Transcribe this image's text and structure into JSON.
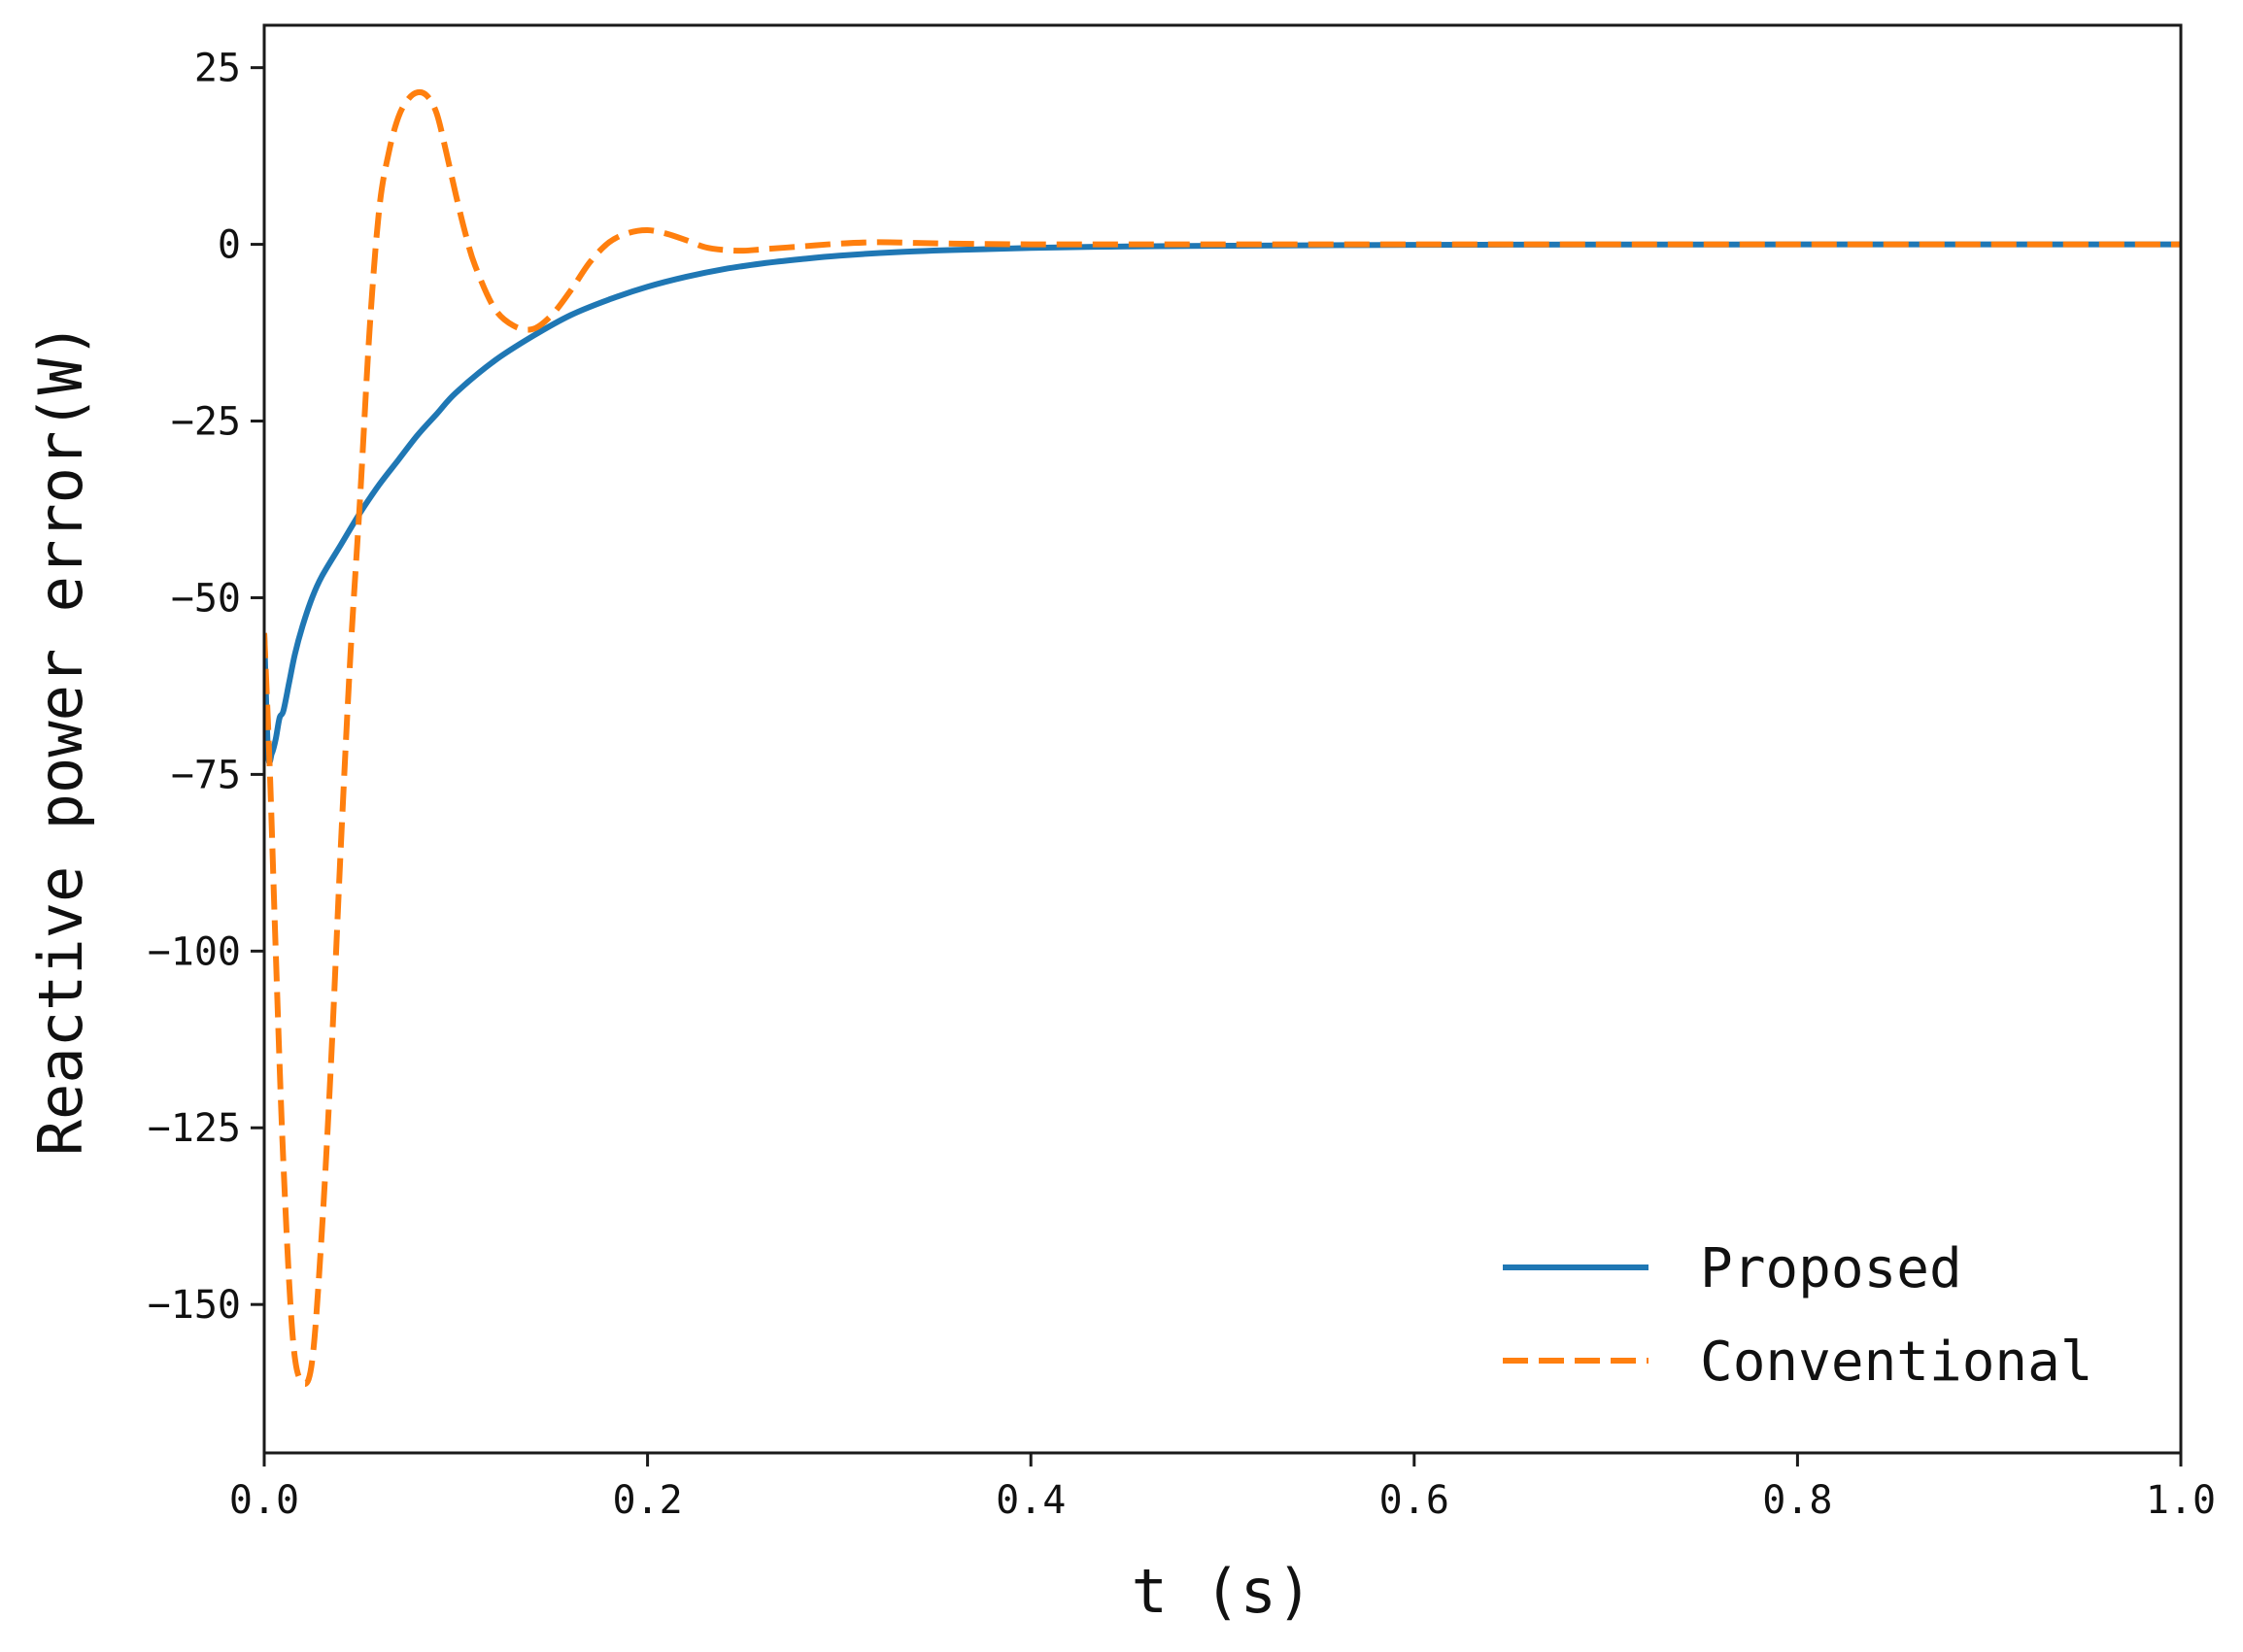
{
  "chart_data": {
    "type": "line",
    "title": "",
    "xlabel": "t (s)",
    "ylabel": "Reactive power error(W)",
    "xlim": [
      0.0,
      1.0
    ],
    "ylim": [
      -171,
      31
    ],
    "grid": false,
    "legend_position": "bottom-right",
    "x_ticks": [
      {
        "value": 0.0,
        "label": "0.0"
      },
      {
        "value": 0.2,
        "label": "0.2"
      },
      {
        "value": 0.4,
        "label": "0.4"
      },
      {
        "value": 0.6,
        "label": "0.6"
      },
      {
        "value": 0.8,
        "label": "0.8"
      },
      {
        "value": 1.0,
        "label": "1.0"
      }
    ],
    "y_ticks": [
      {
        "value": 25,
        "label": "25"
      },
      {
        "value": 0,
        "label": "0"
      },
      {
        "value": -25,
        "label": "−25"
      },
      {
        "value": -50,
        "label": "−50"
      },
      {
        "value": -75,
        "label": "−75"
      },
      {
        "value": -100,
        "label": "−100"
      },
      {
        "value": -125,
        "label": "−125"
      },
      {
        "value": -150,
        "label": "−150"
      }
    ],
    "series": [
      {
        "name": "Proposed",
        "color": "#1f77b4",
        "style": "solid",
        "x": [
          0.0,
          0.002,
          0.004,
          0.006,
          0.008,
          0.01,
          0.013,
          0.016,
          0.02,
          0.025,
          0.03,
          0.04,
          0.05,
          0.06,
          0.07,
          0.08,
          0.09,
          0.1,
          0.12,
          0.14,
          0.16,
          0.18,
          0.2,
          0.22,
          0.24,
          0.26,
          0.28,
          0.3,
          0.33,
          0.36,
          0.4,
          0.45,
          0.5,
          0.6,
          0.7,
          0.8,
          0.9,
          1.0
        ],
        "y": [
          -55,
          -72,
          -72,
          -70,
          -67,
          -66,
          -62,
          -58,
          -54,
          -50,
          -47,
          -42.5,
          -38,
          -34,
          -30.5,
          -27,
          -24,
          -21,
          -16.5,
          -13,
          -10,
          -7.8,
          -6,
          -4.6,
          -3.5,
          -2.7,
          -2.1,
          -1.6,
          -1.1,
          -0.8,
          -0.5,
          -0.3,
          -0.2,
          -0.07,
          -0.03,
          -0.01,
          0,
          0
        ]
      },
      {
        "name": "Conventional",
        "color": "#ff7f0e",
        "style": "dashed",
        "x": [
          0.0,
          0.003,
          0.006,
          0.01,
          0.015,
          0.02,
          0.025,
          0.03,
          0.035,
          0.04,
          0.045,
          0.05,
          0.055,
          0.06,
          0.065,
          0.07,
          0.075,
          0.08,
          0.085,
          0.09,
          0.095,
          0.1,
          0.105,
          0.11,
          0.12,
          0.13,
          0.14,
          0.15,
          0.16,
          0.17,
          0.18,
          0.19,
          0.2,
          0.21,
          0.22,
          0.23,
          0.24,
          0.25,
          0.26,
          0.28,
          0.3,
          0.32,
          0.34,
          0.36,
          0.4,
          0.45,
          0.5,
          0.6,
          0.7,
          0.8,
          0.9,
          1.0
        ],
        "y": [
          -55,
          -75,
          -100,
          -130,
          -155,
          -161,
          -158,
          -140,
          -115,
          -85,
          -58,
          -36,
          -12,
          5,
          13,
          18,
          20.5,
          21.5,
          21,
          18.5,
          13,
          7,
          1.5,
          -3,
          -9,
          -11.5,
          -12,
          -10,
          -6.5,
          -2.5,
          0.3,
          1.6,
          2,
          1.5,
          0.6,
          -0.4,
          -0.8,
          -0.9,
          -0.7,
          -0.3,
          0.1,
          0.3,
          0.2,
          0.1,
          0,
          0,
          0,
          0,
          0,
          0,
          0,
          0
        ]
      }
    ]
  }
}
